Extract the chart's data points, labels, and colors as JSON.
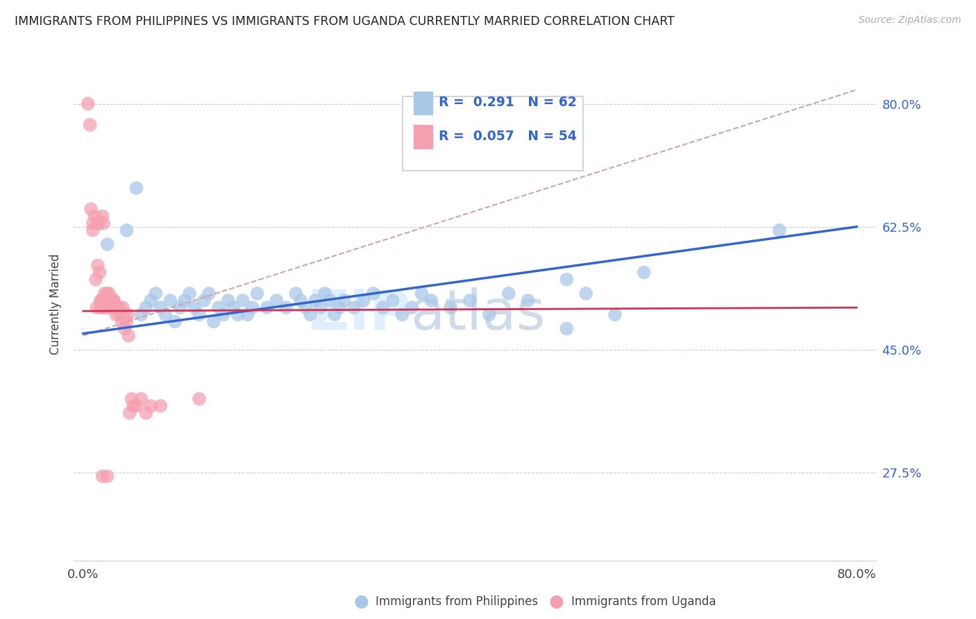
{
  "title": "IMMIGRANTS FROM PHILIPPINES VS IMMIGRANTS FROM UGANDA CURRENTLY MARRIED CORRELATION CHART",
  "source": "Source: ZipAtlas.com",
  "xlabel_bottom": "Immigrants from Philippines",
  "xlabel_bottom2": "Immigrants from Uganda",
  "ylabel": "Currently Married",
  "xlim": [
    0.0,
    0.8
  ],
  "ylim": [
    0.15,
    0.88
  ],
  "ytick_right_vals": [
    0.275,
    0.45,
    0.625,
    0.8
  ],
  "ytick_right_labels": [
    "27.5%",
    "45.0%",
    "62.5%",
    "80.0%"
  ],
  "R_blue": 0.291,
  "N_blue": 62,
  "R_pink": 0.057,
  "N_pink": 54,
  "color_blue": "#a8c8e8",
  "color_pink": "#f4a0b0",
  "color_blue_line": "#3366cc",
  "color_pink_line": "#cc3355",
  "color_dashed": "#d4a0b0",
  "watermark_zip": "ZIP",
  "watermark_atlas": "atlas",
  "blue_x": [
    0.025,
    0.045,
    0.055,
    0.06,
    0.065,
    0.07,
    0.075,
    0.08,
    0.085,
    0.09,
    0.095,
    0.1,
    0.105,
    0.11,
    0.115,
    0.12,
    0.125,
    0.13,
    0.135,
    0.14,
    0.145,
    0.15,
    0.155,
    0.16,
    0.165,
    0.17,
    0.175,
    0.18,
    0.19,
    0.2,
    0.21,
    0.22,
    0.225,
    0.23,
    0.235,
    0.24,
    0.245,
    0.25,
    0.255,
    0.26,
    0.265,
    0.27,
    0.28,
    0.29,
    0.3,
    0.31,
    0.32,
    0.33,
    0.34,
    0.35,
    0.36,
    0.38,
    0.4,
    0.42,
    0.44,
    0.46,
    0.5,
    0.52,
    0.55,
    0.58,
    0.72,
    0.5
  ],
  "blue_y": [
    0.6,
    0.62,
    0.68,
    0.5,
    0.51,
    0.52,
    0.53,
    0.51,
    0.5,
    0.52,
    0.49,
    0.51,
    0.52,
    0.53,
    0.51,
    0.5,
    0.52,
    0.53,
    0.49,
    0.51,
    0.5,
    0.52,
    0.51,
    0.5,
    0.52,
    0.5,
    0.51,
    0.53,
    0.51,
    0.52,
    0.51,
    0.53,
    0.52,
    0.51,
    0.5,
    0.52,
    0.51,
    0.53,
    0.52,
    0.5,
    0.51,
    0.52,
    0.51,
    0.52,
    0.53,
    0.51,
    0.52,
    0.5,
    0.51,
    0.53,
    0.52,
    0.51,
    0.52,
    0.5,
    0.53,
    0.52,
    0.55,
    0.53,
    0.5,
    0.56,
    0.62,
    0.48
  ],
  "pink_x": [
    0.005,
    0.007,
    0.008,
    0.01,
    0.01,
    0.012,
    0.013,
    0.014,
    0.015,
    0.015,
    0.016,
    0.017,
    0.018,
    0.018,
    0.019,
    0.02,
    0.02,
    0.021,
    0.022,
    0.022,
    0.023,
    0.024,
    0.025,
    0.025,
    0.026,
    0.027,
    0.028,
    0.03,
    0.031,
    0.032,
    0.033,
    0.034,
    0.035,
    0.036,
    0.037,
    0.038,
    0.04,
    0.041,
    0.042,
    0.043,
    0.045,
    0.046,
    0.047,
    0.048,
    0.05,
    0.052,
    0.055,
    0.06,
    0.065,
    0.07,
    0.08,
    0.12,
    0.02,
    0.025
  ],
  "pink_y": [
    0.8,
    0.77,
    0.65,
    0.63,
    0.62,
    0.64,
    0.55,
    0.51,
    0.63,
    0.57,
    0.63,
    0.56,
    0.51,
    0.52,
    0.52,
    0.51,
    0.64,
    0.63,
    0.53,
    0.52,
    0.51,
    0.51,
    0.53,
    0.52,
    0.52,
    0.53,
    0.51,
    0.52,
    0.52,
    0.52,
    0.51,
    0.5,
    0.51,
    0.51,
    0.51,
    0.5,
    0.49,
    0.51,
    0.5,
    0.48,
    0.49,
    0.5,
    0.47,
    0.36,
    0.38,
    0.37,
    0.37,
    0.38,
    0.36,
    0.37,
    0.37,
    0.38,
    0.27,
    0.27
  ]
}
